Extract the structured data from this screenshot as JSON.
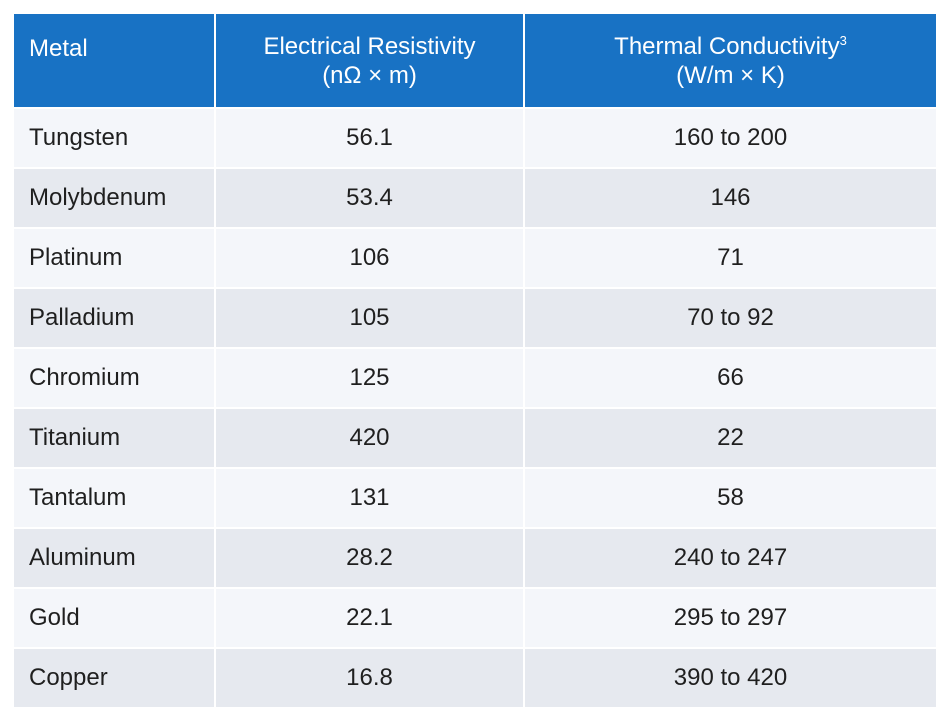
{
  "table": {
    "headers": {
      "metal": "Metal",
      "resistivity_line1": "Electrical Resistivity",
      "resistivity_line2": "(nΩ × m)",
      "conductivity_line1": "Thermal Conductivity",
      "conductivity_note": "3",
      "conductivity_line2": "(W/m × K)"
    },
    "rows": [
      {
        "metal": "Tungsten",
        "resistivity": "56.1",
        "conductivity": "160 to 200"
      },
      {
        "metal": "Molybdenum",
        "resistivity": "53.4",
        "conductivity": "146"
      },
      {
        "metal": "Platinum",
        "resistivity": "106",
        "conductivity": "71"
      },
      {
        "metal": "Palladium",
        "resistivity": "105",
        "conductivity": "70 to 92"
      },
      {
        "metal": "Chromium",
        "resistivity": "125",
        "conductivity": "66"
      },
      {
        "metal": "Titanium",
        "resistivity": "420",
        "conductivity": "22"
      },
      {
        "metal": "Tantalum",
        "resistivity": "131",
        "conductivity": "58"
      },
      {
        "metal": "Aluminum",
        "resistivity": "28.2",
        "conductivity": "240 to 247"
      },
      {
        "metal": "Gold",
        "resistivity": "22.1",
        "conductivity": "295 to 297"
      },
      {
        "metal": "Copper",
        "resistivity": "16.8",
        "conductivity": "390 to 420"
      }
    ]
  },
  "colors": {
    "header_bg": "#1872c4",
    "row_light": "#f4f6fa",
    "row_dark": "#e6e9ef"
  }
}
